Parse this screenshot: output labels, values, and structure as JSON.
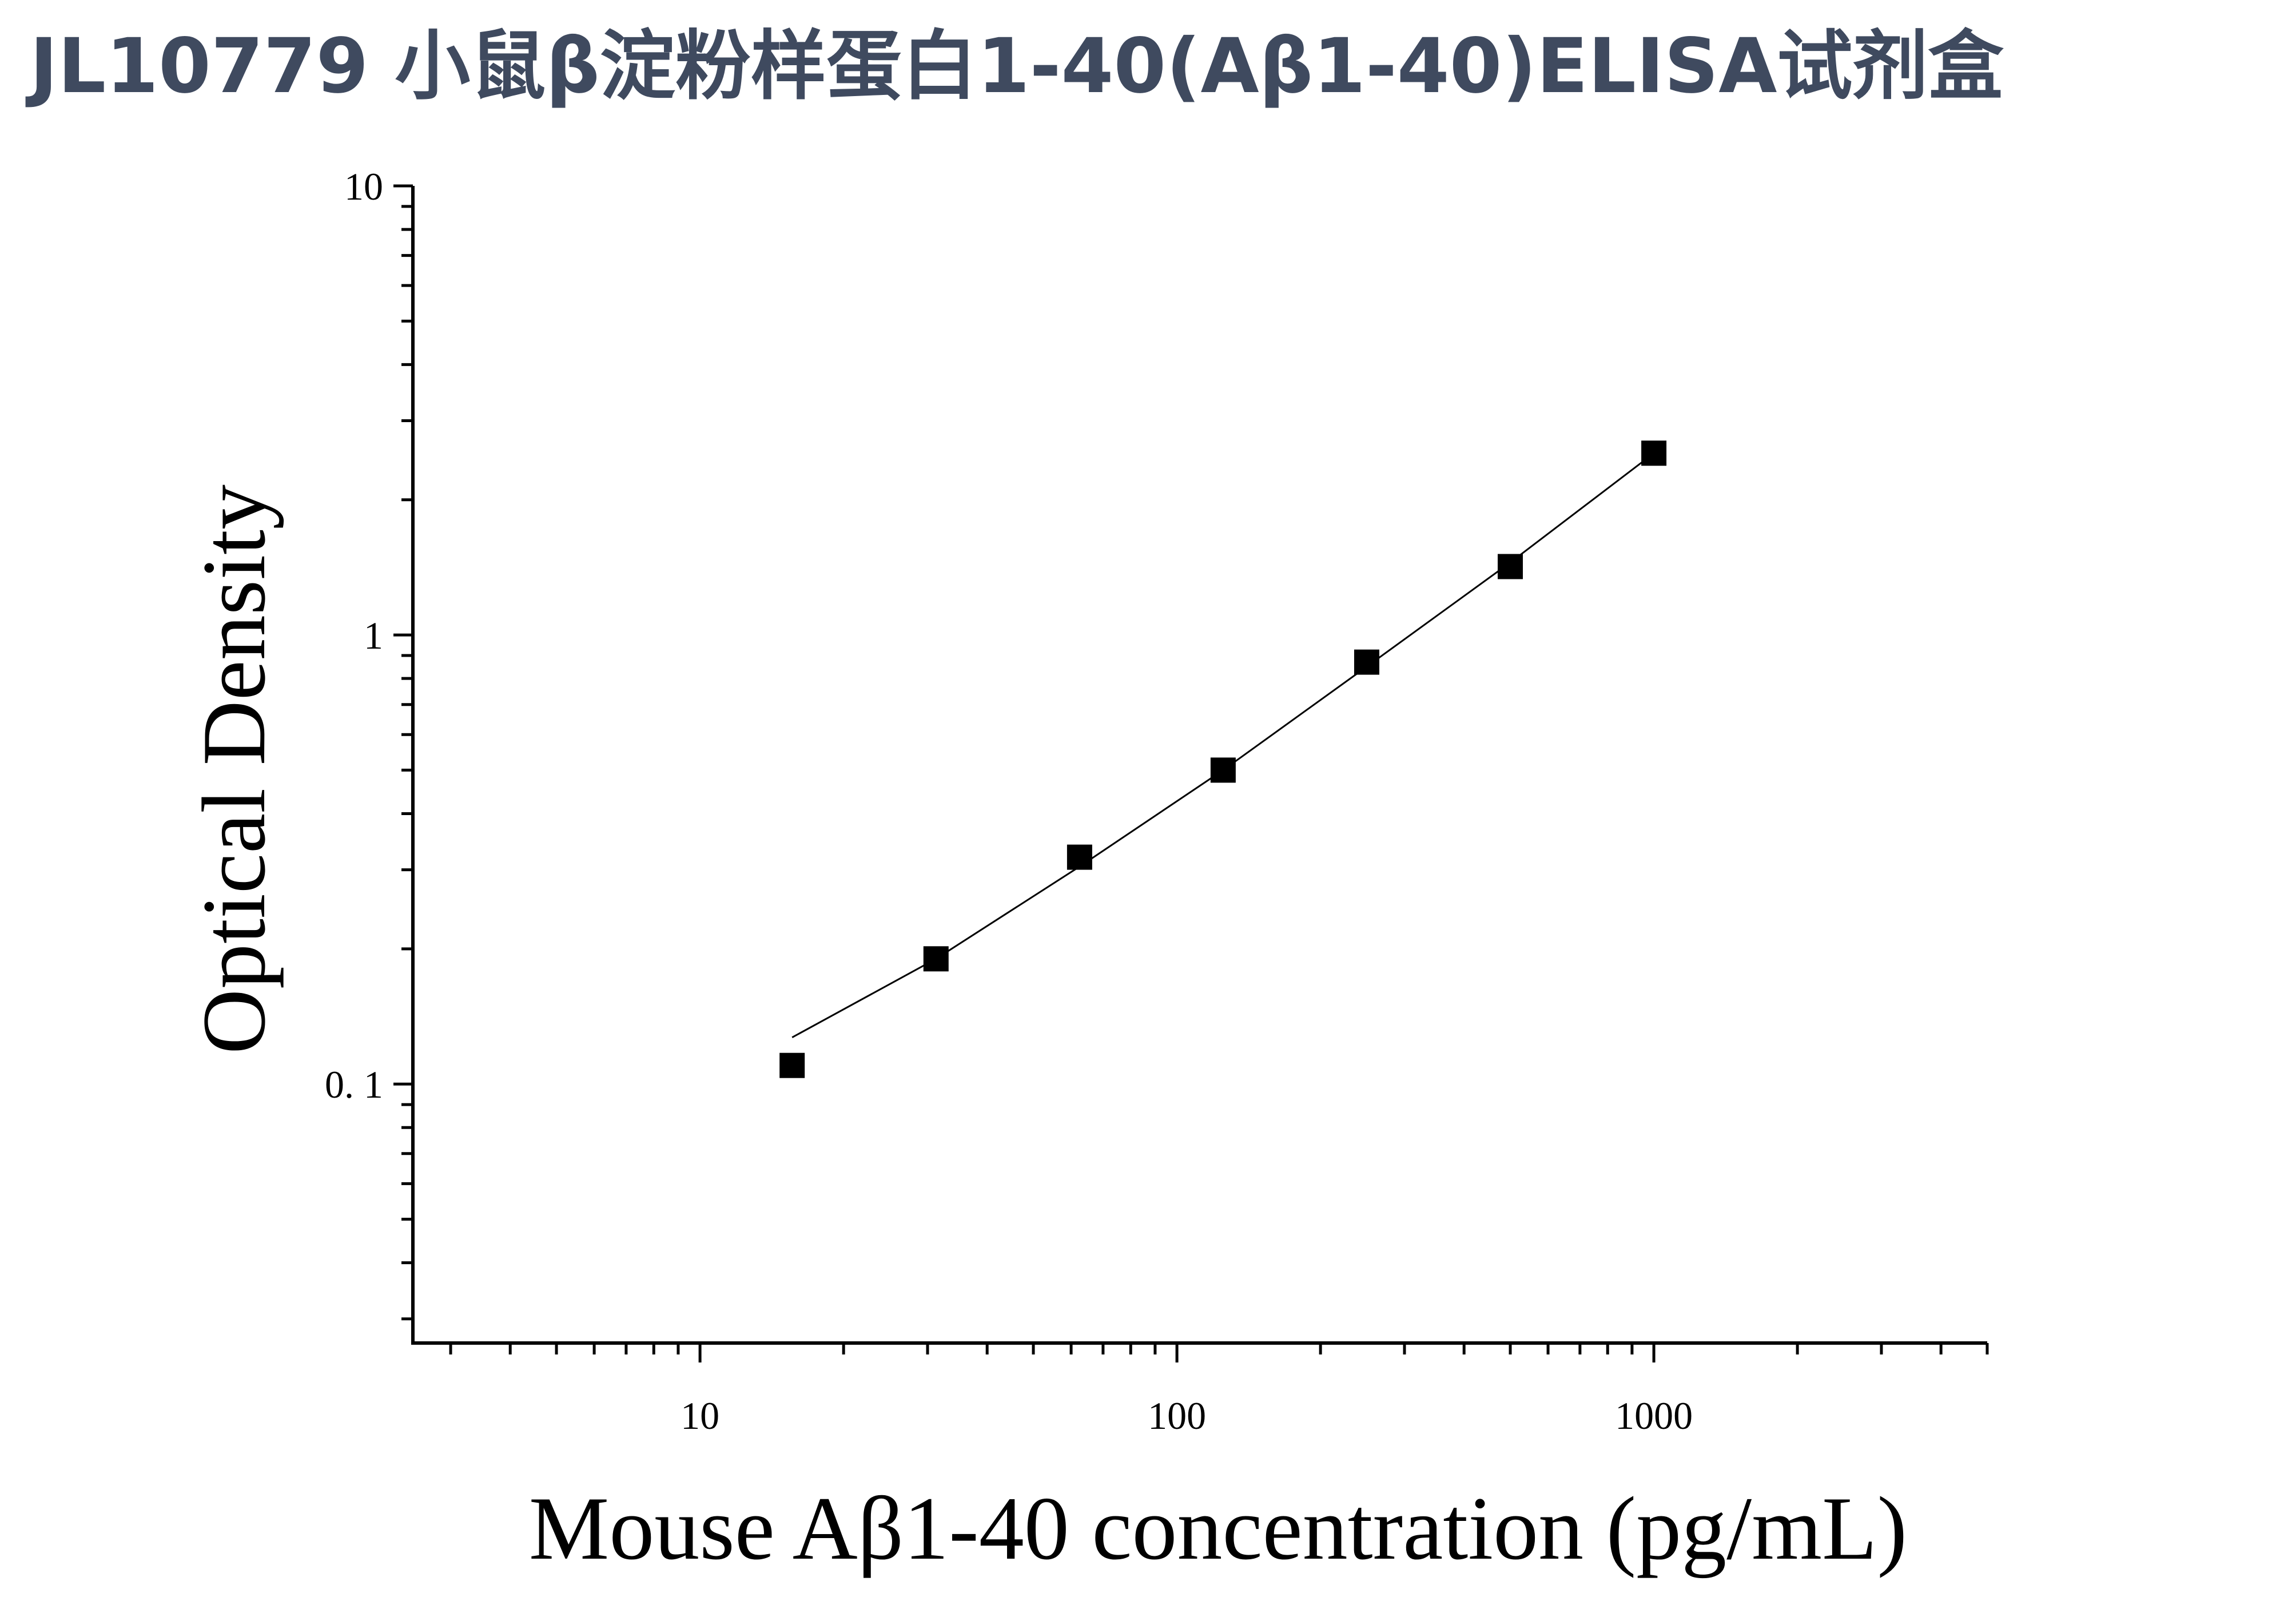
{
  "chart_data": {
    "type": "scatter",
    "title": "JL10779 小鼠β淀粉样蛋白1-40(Aβ1-40)ELISA试剂盒",
    "xlabel": "Mouse Aβ1-40 concentration (pg/mL)",
    "ylabel": "Optical Density",
    "x_scale": "log",
    "y_scale": "log",
    "xlim": [
      2.5,
      5000
    ],
    "ylim": [
      0.0265,
      10
    ],
    "x_ticks": [
      10,
      100,
      1000
    ],
    "x_tick_labels": [
      "10",
      "100",
      "1000"
    ],
    "y_ticks": [
      0.1,
      1,
      10
    ],
    "y_tick_labels": [
      "0. 1",
      "1",
      "10"
    ],
    "grid": false,
    "legend": "none",
    "colors": {
      "title": "#3f4a5f",
      "marker": "#000000",
      "curve": "#000000",
      "axis": "#000000"
    },
    "series": [
      {
        "marker": "square",
        "x": [
          15.6,
          31.25,
          62.5,
          125,
          250,
          500,
          1000
        ],
        "y": [
          0.11,
          0.19,
          0.32,
          0.5,
          0.87,
          1.42,
          2.54
        ]
      }
    ],
    "fit_curve": {
      "x": [
        15.6,
        31.25,
        62.5,
        125,
        250,
        500,
        1000
      ],
      "y": [
        0.127,
        0.19,
        0.305,
        0.5,
        0.85,
        1.45,
        2.54
      ]
    }
  }
}
